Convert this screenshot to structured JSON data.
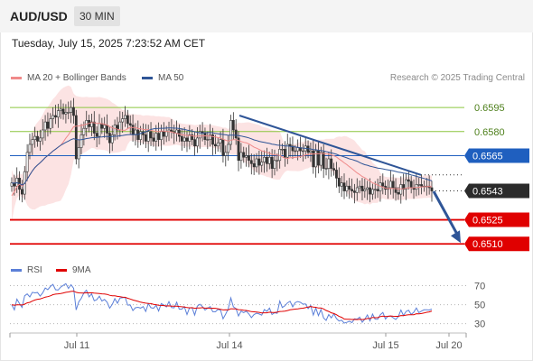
{
  "header": {
    "symbol": "AUD/USD",
    "timeframe": "30 MIN"
  },
  "datetime": "Tuesday, July 15, 2025 7:23:52 AM CET",
  "legend": {
    "ma20": {
      "label": "MA 20 + Bollinger Bands",
      "color": "#f08a8a"
    },
    "ma50": {
      "label": "MA 50",
      "color": "#2f5597"
    }
  },
  "credit": "Research © 2025 Trading Central",
  "rsi_legend": {
    "rsi": {
      "label": "RSI",
      "color": "#5b7fd8"
    },
    "ma9": {
      "label": "9MA",
      "color": "#e00000"
    }
  },
  "chart_data": [
    {
      "type": "candlestick",
      "title": "AUD/USD 30 MIN",
      "x_tick_labels": [
        "Jul 11",
        "Jul 14",
        "Jul 15",
        "Jul 20"
      ],
      "ylim": [
        0.65045,
        0.66035
      ],
      "levels": [
        {
          "name": "resistance-2",
          "value": 0.6595,
          "label": "0.6595",
          "color": "#8cc63f"
        },
        {
          "name": "resistance-1",
          "value": 0.658,
          "label": "0.6580",
          "color": "#8cc63f"
        },
        {
          "name": "pivot",
          "value": 0.6565,
          "label": "0.6565",
          "color": "#1f5fbf"
        },
        {
          "name": "last-price",
          "value": 0.6543,
          "label": "0.6543",
          "color": "#222222"
        },
        {
          "name": "support-1",
          "value": 0.6525,
          "label": "0.6525",
          "color": "#e00000"
        },
        {
          "name": "support-2",
          "value": 0.651,
          "label": "0.6510",
          "color": "#e00000"
        }
      ],
      "candles_close": [
        0.6548,
        0.6546,
        0.6551,
        0.6544,
        0.6541,
        0.6555,
        0.6567,
        0.6572,
        0.6575,
        0.6577,
        0.6574,
        0.6576,
        0.6581,
        0.6586,
        0.6582,
        0.6588,
        0.659,
        0.6589,
        0.6593,
        0.6594,
        0.6591,
        0.6592,
        0.6592,
        0.6595,
        0.659,
        0.6563,
        0.657,
        0.6578,
        0.6582,
        0.6587,
        0.6583,
        0.6586,
        0.6579,
        0.6577,
        0.6585,
        0.6582,
        0.6584,
        0.6579,
        0.6573,
        0.6578,
        0.6584,
        0.6581,
        0.6586,
        0.6588,
        0.659,
        0.6585,
        0.6584,
        0.6578,
        0.6581,
        0.6575,
        0.658,
        0.6578,
        0.6574,
        0.658,
        0.6576,
        0.6574,
        0.6579,
        0.6575,
        0.658,
        0.6577,
        0.658,
        0.6581,
        0.658,
        0.6579,
        0.6581,
        0.6577,
        0.6574,
        0.6576,
        0.6574,
        0.6578,
        0.6575,
        0.6571,
        0.6576,
        0.658,
        0.6579,
        0.6575,
        0.6575,
        0.6578,
        0.6572,
        0.6571,
        0.6573,
        0.6575,
        0.6565,
        0.6567,
        0.6572,
        0.6587,
        0.6581,
        0.6576,
        0.6562,
        0.6567,
        0.6564,
        0.6565,
        0.6562,
        0.656,
        0.6558,
        0.6563,
        0.6559,
        0.6561,
        0.6564,
        0.656,
        0.6564,
        0.6557,
        0.6562,
        0.6562,
        0.6569,
        0.6569,
        0.6564,
        0.6572,
        0.6571,
        0.6568,
        0.6568,
        0.657,
        0.6568,
        0.6568,
        0.6571,
        0.6567,
        0.6568,
        0.6558,
        0.6568,
        0.6559,
        0.6567,
        0.6557,
        0.6557,
        0.6563,
        0.6557,
        0.6556,
        0.6551,
        0.6546,
        0.6548,
        0.6543,
        0.6546,
        0.6544,
        0.6543,
        0.6542,
        0.6545,
        0.6546,
        0.6543,
        0.6544,
        0.6545,
        0.6541,
        0.6544,
        0.6544,
        0.6543,
        0.6548,
        0.6546,
        0.6544,
        0.6545,
        0.6549,
        0.6545,
        0.6542,
        0.6541,
        0.6547,
        0.6544,
        0.655,
        0.6549,
        0.6545,
        0.6544,
        0.6547,
        0.6547,
        0.6546,
        0.6546,
        0.6546,
        0.6545,
        0.6543
      ],
      "ma20_start": 0.654,
      "ma50_start": 0.6548,
      "trendline_start": 0.659,
      "trendline_end": 0.6553,
      "projection_end": 0.651
    },
    {
      "type": "line",
      "title": "RSI",
      "y_tick_labels": [
        "70",
        "50",
        "30"
      ],
      "ylim": [
        24,
        80
      ],
      "series": [
        {
          "name": "RSI",
          "values": [
            50.0,
            44.6,
            55.8,
            51.1,
            47.2,
            59.4,
            61.3,
            58.2,
            63.0,
            62.4,
            62.8,
            59.0,
            62.3,
            67.6,
            65.8,
            69.2,
            71.3,
            65.8,
            65.4,
            68.5,
            70.3,
            72.1,
            67.1,
            71.0,
            67.2,
            44.5,
            53.0,
            56.7,
            62.5,
            65.3,
            58.3,
            61.4,
            54.2,
            55.2,
            58.9,
            53.8,
            55.5,
            52.6,
            46.3,
            50.3,
            56.4,
            51.5,
            56.9,
            57.3,
            57.7,
            49.5,
            49.7,
            43.8,
            46.8,
            47.3,
            46.4,
            48.0,
            42.9,
            51.1,
            46.9,
            46.2,
            49.3,
            43.4,
            51.2,
            49.7,
            47.6,
            53.2,
            47.0,
            46.7,
            52.7,
            45.4,
            45.4,
            47.8,
            39.7,
            46.8,
            46.6,
            39.1,
            48.5,
            50.5,
            48.0,
            44.4,
            46.3,
            48.0,
            42.6,
            42.5,
            45.0,
            44.4,
            35.2,
            40.1,
            45.5,
            57.1,
            47.8,
            45.9,
            38.1,
            43.3,
            41.7,
            43.3,
            40.2,
            36.4,
            39.7,
            41.1,
            40.2,
            39.0,
            44.9,
            43.1,
            46.4,
            39.7,
            41.6,
            40.9,
            53.8,
            47.1,
            48.9,
            51.9,
            53.6,
            47.7,
            52.2,
            53.3,
            52.5,
            50.6,
            50.8,
            45.8,
            49.2,
            39.1,
            46.4,
            38.5,
            44.9,
            36.1,
            33.5,
            39.7,
            36.1,
            40.4,
            35.5,
            32.8,
            33.7,
            30.6,
            31.4,
            32.6,
            31.1,
            35.1,
            34.8,
            36.9,
            31.5,
            34.8,
            39.3,
            33.0,
            40.1,
            34.8,
            34.7,
            39.4,
            41.8,
            34.9,
            38.0,
            38.1,
            36.2,
            34.4,
            37.5,
            44.4,
            38.6,
            42.9,
            44.1,
            39.8,
            42.0,
            46.6,
            41.7,
            43.3,
            44.6,
            44.7,
            44.4,
            45.4
          ]
        },
        {
          "name": "9MA",
          "values": [
            50.0,
            49.4,
            49.8,
            49.9,
            49.6,
            50.6,
            51.9,
            52.5,
            53.8,
            54.9,
            55.7,
            56.1,
            56.9,
            58.0,
            58.5,
            59.3,
            60.5,
            61.1,
            61.4,
            61.8,
            62.3,
            63.0,
            63.4,
            64.0,
            64.2,
            63.0,
            62.4,
            62.3,
            62.2,
            62.5,
            62.4,
            62.5,
            62.2,
            62.0,
            61.8,
            61.4,
            61.3,
            60.8,
            59.9,
            59.4,
            59.3,
            58.7,
            58.4,
            58.0,
            57.8,
            56.7,
            56.0,
            54.9,
            54.3,
            53.5,
            52.7,
            52.1,
            51.6,
            51.3,
            51.1,
            50.4,
            50.0,
            49.4,
            49.2,
            49.1,
            48.7,
            48.8,
            48.5,
            48.5,
            48.5,
            48.1,
            47.8,
            47.6,
            47.0,
            46.7,
            46.9,
            46.2,
            46.5,
            46.6,
            46.9,
            46.3,
            46.5,
            46.1,
            46.3,
            46.2,
            45.7,
            45.2,
            44.5,
            44.6,
            44.5,
            45.7,
            45.6,
            45.5,
            44.8,
            44.6,
            44.2,
            43.9,
            43.4,
            42.7,
            42.5,
            42.2,
            41.9,
            41.4,
            41.5,
            41.5,
            42.1,
            41.8,
            41.8,
            42.1,
            42.9,
            43.0,
            43.3,
            43.8,
            44.6,
            45.0,
            45.4,
            45.6,
            46.0,
            46.3,
            46.9,
            47.5,
            48.1,
            47.5,
            47.3,
            46.5,
            46.5,
            45.5,
            43.9,
            42.9,
            41.5,
            40.7,
            39.5,
            37.7,
            36.7,
            34.9,
            34.7,
            34.6,
            34.4,
            34.5,
            34.3,
            34.6,
            34.3,
            34.6,
            35.5,
            35.5,
            36.6,
            36.3,
            36.4,
            37.5,
            38.0,
            37.6,
            37.8,
            38.1,
            37.9,
            37.8,
            37.8,
            38.6,
            38.5,
            39.1,
            39.5,
            39.4,
            39.5,
            40.5,
            40.4,
            40.7,
            41.3,
            42.0,
            42.4,
            43.4
          ]
        }
      ]
    }
  ]
}
